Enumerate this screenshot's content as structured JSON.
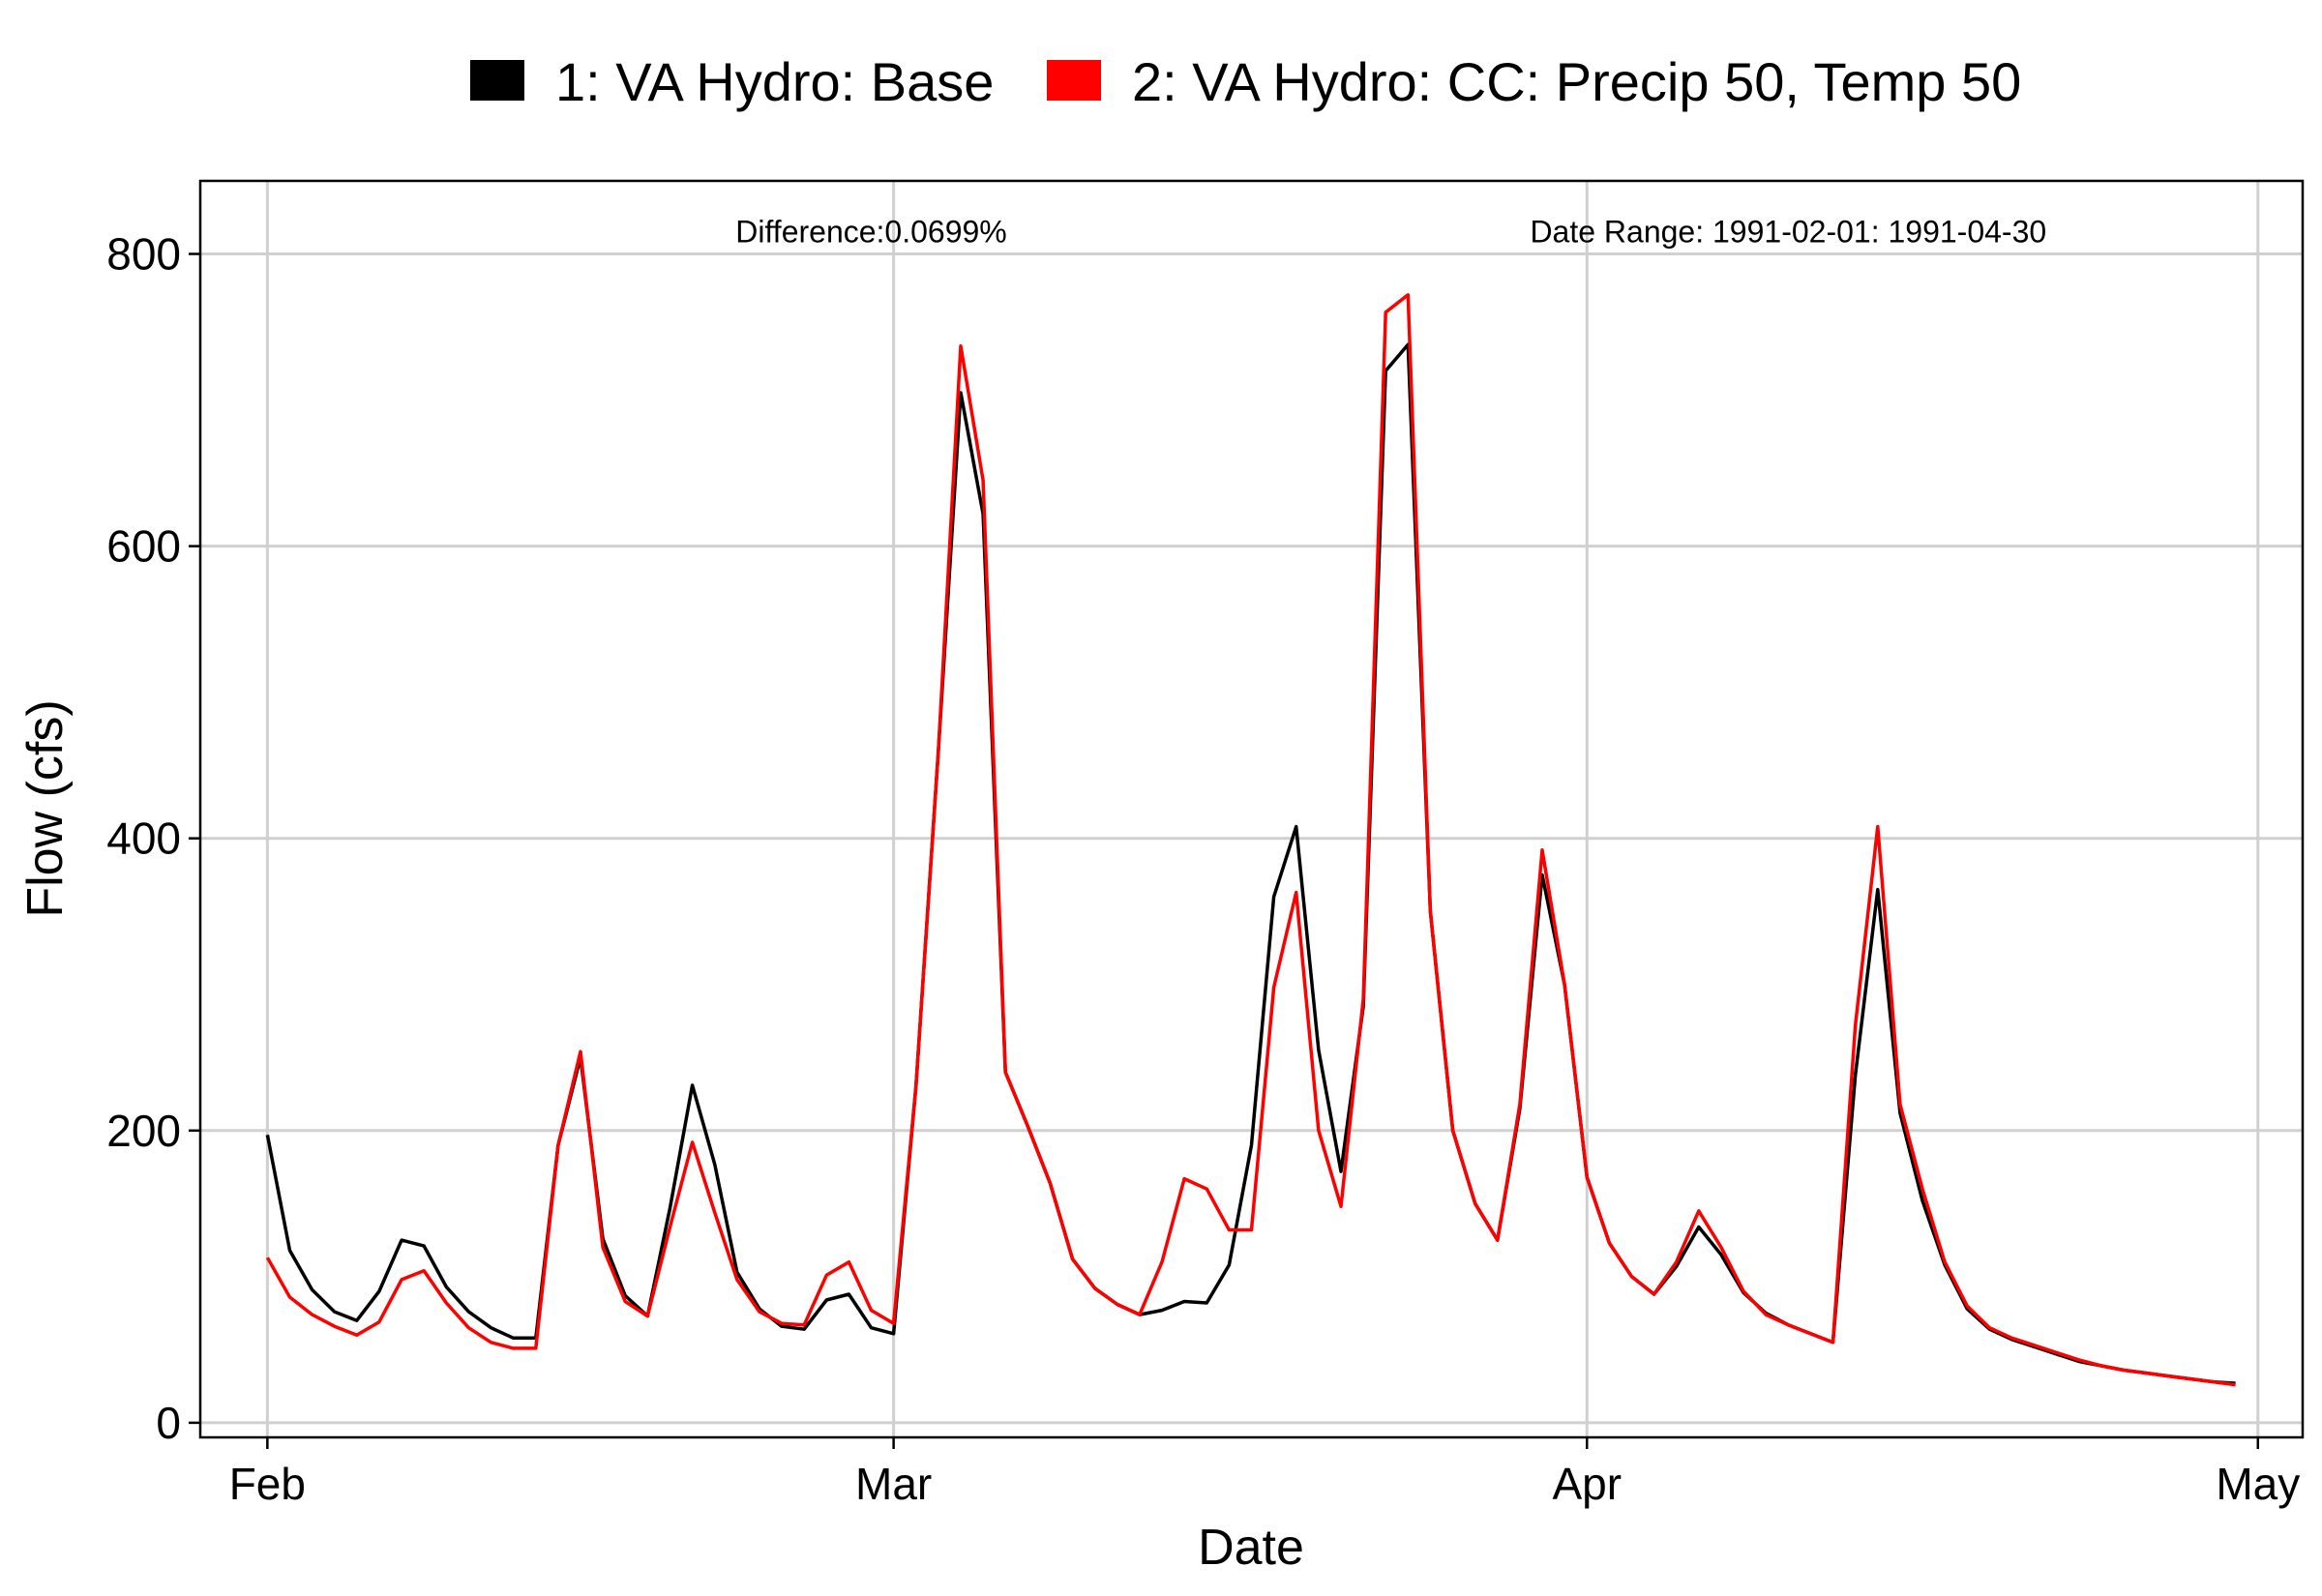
{
  "colors": {
    "base": "#000000",
    "cc": "#ff0000",
    "grid": "#d0d0d0",
    "panel_border": "#000000"
  },
  "chart_data": {
    "type": "line",
    "xlabel": "Date",
    "ylabel": "Flow (cfs)",
    "xlim": [
      "1991-01-29",
      "1991-05-03"
    ],
    "ylim": [
      -10,
      850
    ],
    "grid": true,
    "legend_position": "top",
    "x_ticks": [
      {
        "date": "1991-02-01",
        "label": "Feb"
      },
      {
        "date": "1991-03-01",
        "label": "Mar"
      },
      {
        "date": "1991-04-01",
        "label": "Apr"
      },
      {
        "date": "1991-05-01",
        "label": "May"
      }
    ],
    "y_ticks": [
      0,
      200,
      400,
      600,
      800
    ],
    "annotations": [
      {
        "text": "Difference:0.0699%",
        "date": "1991-02-28",
        "y": 808,
        "align": "middle"
      },
      {
        "text": "Date Range: 1991-02-01: 1991-04-30",
        "date": "1991-04-10",
        "y": 808,
        "align": "middle"
      }
    ],
    "dates": [
      "1991-02-01",
      "1991-02-02",
      "1991-02-03",
      "1991-02-04",
      "1991-02-05",
      "1991-02-06",
      "1991-02-07",
      "1991-02-08",
      "1991-02-09",
      "1991-02-10",
      "1991-02-11",
      "1991-02-12",
      "1991-02-13",
      "1991-02-14",
      "1991-02-15",
      "1991-02-16",
      "1991-02-17",
      "1991-02-18",
      "1991-02-19",
      "1991-02-20",
      "1991-02-21",
      "1991-02-22",
      "1991-02-23",
      "1991-02-24",
      "1991-02-25",
      "1991-02-26",
      "1991-02-27",
      "1991-02-28",
      "1991-03-01",
      "1991-03-02",
      "1991-03-03",
      "1991-03-04",
      "1991-03-05",
      "1991-03-06",
      "1991-03-07",
      "1991-03-08",
      "1991-03-09",
      "1991-03-10",
      "1991-03-11",
      "1991-03-12",
      "1991-03-13",
      "1991-03-14",
      "1991-03-15",
      "1991-03-16",
      "1991-03-17",
      "1991-03-18",
      "1991-03-19",
      "1991-03-20",
      "1991-03-21",
      "1991-03-22",
      "1991-03-23",
      "1991-03-24",
      "1991-03-25",
      "1991-03-26",
      "1991-03-27",
      "1991-03-28",
      "1991-03-29",
      "1991-03-30",
      "1991-03-31",
      "1991-04-01",
      "1991-04-02",
      "1991-04-03",
      "1991-04-04",
      "1991-04-05",
      "1991-04-06",
      "1991-04-07",
      "1991-04-08",
      "1991-04-09",
      "1991-04-10",
      "1991-04-11",
      "1991-04-12",
      "1991-04-13",
      "1991-04-14",
      "1991-04-15",
      "1991-04-16",
      "1991-04-17",
      "1991-04-18",
      "1991-04-19",
      "1991-04-20",
      "1991-04-21",
      "1991-04-22",
      "1991-04-23",
      "1991-04-24",
      "1991-04-25",
      "1991-04-26",
      "1991-04-27",
      "1991-04-28",
      "1991-04-29",
      "1991-04-30"
    ],
    "series": [
      {
        "name": "1: VA Hydro: Base",
        "color": "#000000",
        "values": [
          197,
          118,
          91,
          76,
          70,
          90,
          125,
          121,
          93,
          76,
          65,
          58,
          58,
          190,
          250,
          126,
          87,
          73,
          147,
          231,
          177,
          103,
          78,
          66,
          64,
          84,
          88,
          65,
          61,
          230,
          460,
          705,
          622,
          240,
          203,
          164,
          112,
          92,
          81,
          74,
          77,
          83,
          82,
          108,
          190,
          360,
          408,
          255,
          172,
          285,
          720,
          738,
          350,
          200,
          150,
          125,
          215,
          375,
          300,
          168,
          123,
          100,
          88,
          107,
          134,
          115,
          89,
          75,
          67,
          61,
          55,
          238,
          365,
          212,
          152,
          108,
          78,
          64,
          57,
          52,
          47,
          42,
          39,
          36,
          34,
          32,
          30,
          28,
          27
        ]
      },
      {
        "name": "2: VA Hydro: CC: Precip 50, Temp 50",
        "color": "#ff0000",
        "values": [
          113,
          86,
          74,
          66,
          60,
          69,
          98,
          104,
          82,
          65,
          55,
          51,
          51,
          190,
          254,
          120,
          83,
          73,
          134,
          192,
          144,
          98,
          76,
          68,
          67,
          101,
          110,
          77,
          68,
          230,
          460,
          737,
          645,
          240,
          203,
          164,
          112,
          92,
          81,
          74,
          110,
          167,
          160,
          132,
          132,
          298,
          363,
          200,
          148,
          290,
          760,
          772,
          350,
          200,
          150,
          125,
          218,
          392,
          300,
          168,
          123,
          100,
          88,
          110,
          145,
          120,
          90,
          74,
          67,
          61,
          55,
          272,
          408,
          218,
          160,
          110,
          80,
          65,
          58,
          53,
          48,
          43,
          39,
          36,
          34,
          32,
          30,
          28,
          26
        ]
      }
    ]
  }
}
